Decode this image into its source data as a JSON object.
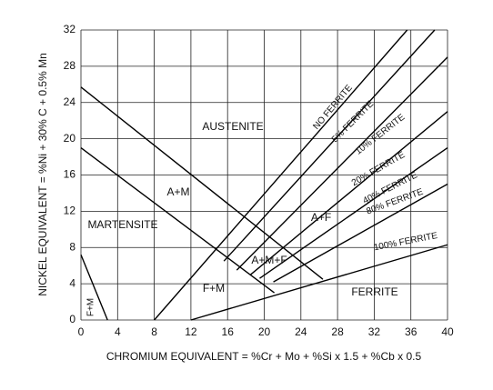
{
  "chart_data": {
    "type": "line",
    "xlabel": "CHROMIUM EQUIVALENT = %Cr + Mo + %Si x 1.5 + %Cb x 0.5",
    "ylabel": "NICKEL EQUIVALENT = %Ni + 30% C + 0.5% Mn",
    "xlim": [
      0,
      40
    ],
    "ylim": [
      0,
      32
    ],
    "xticks": [
      0,
      4,
      8,
      12,
      16,
      20,
      24,
      28,
      32,
      36,
      40
    ],
    "yticks": [
      0,
      4,
      8,
      12,
      16,
      20,
      24,
      28,
      32
    ],
    "grid": true,
    "color": "#000000",
    "series": [
      {
        "x": [
          0,
          26.4
        ],
        "values": [
          25.7,
          4.5
        ]
      },
      {
        "x": [
          0,
          21.1
        ],
        "values": [
          19,
          3
        ]
      },
      {
        "x": [
          0,
          2.9
        ],
        "values": [
          7.2,
          0
        ]
      },
      {
        "x": [
          12,
          40
        ],
        "values": [
          0,
          8.3
        ]
      },
      {
        "x": [
          8,
          35.6
        ],
        "values": [
          0,
          32
        ]
      },
      {
        "x": [
          15.6,
          38.6
        ],
        "values": [
          6.5,
          32
        ]
      },
      {
        "x": [
          17,
          40
        ],
        "values": [
          5.5,
          29
        ]
      },
      {
        "x": [
          18.5,
          40
        ],
        "values": [
          5,
          23
        ]
      },
      {
        "x": [
          19.5,
          40
        ],
        "values": [
          4.6,
          19
        ]
      },
      {
        "x": [
          21,
          40
        ],
        "values": [
          4.2,
          15
        ]
      }
    ],
    "annotations": [
      "AUSTENITE",
      "NO FERRITE",
      "5% FERRITE",
      "10% FERRITE",
      "20% FERRITE",
      "40% FERRITE",
      "80% FERRITE",
      "100% FERRITE",
      "A+M",
      "A+F",
      "MARTENSITE",
      "A+M+F",
      "F+M",
      "FERRITE",
      "F+M"
    ]
  }
}
